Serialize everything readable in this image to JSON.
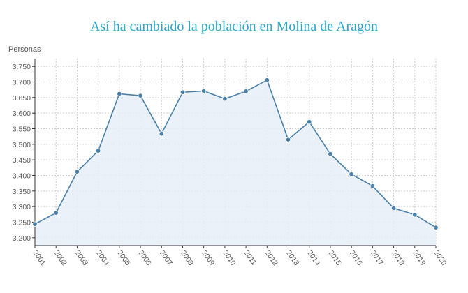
{
  "chart_data": {
    "type": "area",
    "title": "Así ha cambiado la población en Molina de Aragón",
    "ylabel": "Personas",
    "xlabel": "",
    "x": [
      "2001",
      "2002",
      "2003",
      "2004",
      "2005",
      "2006",
      "2007",
      "2008",
      "2009",
      "2010",
      "2011",
      "2012",
      "2013",
      "2014",
      "2015",
      "2016",
      "2017",
      "2018",
      "2019",
      "2020"
    ],
    "values": [
      3244,
      3280,
      3412,
      3479,
      3662,
      3656,
      3534,
      3667,
      3671,
      3646,
      3670,
      3706,
      3515,
      3572,
      3469,
      3404,
      3366,
      3295,
      3274,
      3233
    ],
    "ylim": [
      3175,
      3775
    ],
    "yticks": [
      "3.200",
      "3.250",
      "3.300",
      "3.350",
      "3.400",
      "3.450",
      "3.500",
      "3.550",
      "3.600",
      "3.650",
      "3.700",
      "3.750"
    ],
    "ytick_values": [
      3200,
      3250,
      3300,
      3350,
      3400,
      3450,
      3500,
      3550,
      3600,
      3650,
      3700,
      3750
    ],
    "grid": true,
    "colors": {
      "line": "#4a80a8",
      "fill": "#e9eff7",
      "marker": "#4a80a8",
      "title": "#2ba6c4"
    }
  }
}
